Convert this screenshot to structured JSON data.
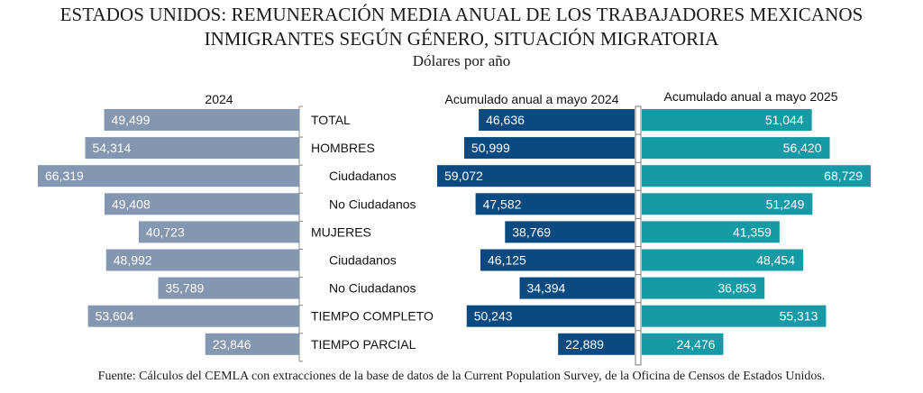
{
  "chart_data": {
    "type": "bar",
    "title": "ESTADOS UNIDOS: REMUNERACIÓN MEDIA ANUAL DE LOS TRABAJADORES MEXICANOS",
    "title_line2": "INMIGRANTES SEGÚN GÉNERO, SITUACIÓN MIGRATORIA",
    "subtitle": "Dólares por año",
    "source": "Fuente: Cálculos del CEMLA con extracciones de la base de datos de la Current Population Survey, de la Oficina de Censos de Estados Unidos.",
    "orientation": "horizontal",
    "categories": [
      "TOTAL",
      "HOMBRES",
      "Ciudadanos",
      "No Ciudadanos",
      "MUJERES",
      "Ciudadanos",
      "No Ciudadanos",
      "TIEMPO COMPLETO",
      "TIEMPO PARCIAL"
    ],
    "category_indent": [
      false,
      false,
      true,
      true,
      false,
      true,
      true,
      false,
      false
    ],
    "series": [
      {
        "name": "2024",
        "color": "#8497b0",
        "direction": "left",
        "values": [
          49499,
          54314,
          66319,
          49408,
          40723,
          48992,
          35789,
          53604,
          23846
        ],
        "labels": [
          "49,499",
          "54,314",
          "66,319",
          "49,408",
          "40,723",
          "48,992",
          "35,789",
          "53,604",
          "23,846"
        ]
      },
      {
        "name": "Acumulado anual a mayo 2024",
        "color": "#0b4a80",
        "direction": "left",
        "values": [
          46636,
          50999,
          59072,
          47582,
          38769,
          46125,
          34394,
          50243,
          22889
        ],
        "labels": [
          "46,636",
          "50,999",
          "59,072",
          "47,582",
          "38,769",
          "46,125",
          "34,394",
          "50,243",
          "22,889"
        ]
      },
      {
        "name": "Acumulado anual a mayo 2025",
        "color": "#169aa6",
        "direction": "right",
        "values": [
          51044,
          56420,
          68729,
          51249,
          41359,
          48454,
          36853,
          55313,
          24476
        ],
        "labels": [
          "51,044",
          "56,420",
          "68,729",
          "51,249",
          "41,359",
          "48,454",
          "36,853",
          "55,313",
          "24,476"
        ]
      }
    ],
    "xlabel": "",
    "ylabel": "",
    "xlim": [
      0,
      70000
    ],
    "grid": false,
    "legend": "none"
  }
}
